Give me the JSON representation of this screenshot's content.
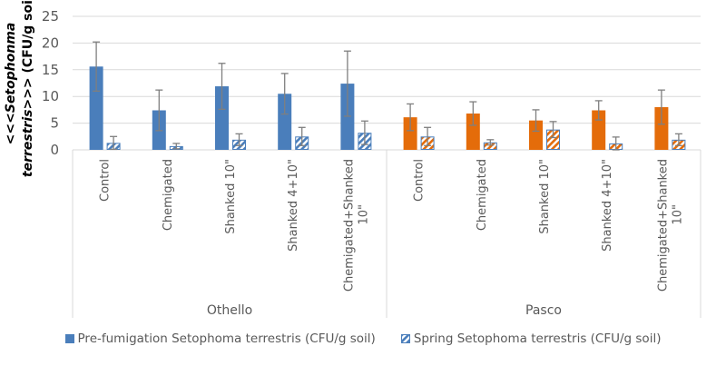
{
  "chart_data": {
    "type": "bar",
    "title": "",
    "ylabel_parts": [
      "<<<",
      "Setophonma terrestris",
      ">>> (CFU/g soil)"
    ],
    "ylabel": "<<<Setophonma terrestris>>> (CFU/g soil)",
    "xlabel": "",
    "ylim": [
      0,
      25
    ],
    "yticks": [
      0,
      5,
      10,
      15,
      20,
      25
    ],
    "grid": true,
    "legend_position": "bottom",
    "groups": [
      {
        "name": "Othello",
        "categories": [
          "Control",
          "Chemigated",
          "Shanked 10\"",
          "Shanked 4+10\"",
          "Chemigated+Shanked 10\""
        ]
      },
      {
        "name": "Pasco",
        "categories": [
          "Control",
          "Chemigated",
          "Shanked 10\"",
          "Shanked 4+10\"",
          "Chemigated+Shanked 10\""
        ]
      }
    ],
    "categories": [
      "Control",
      "Chemigated",
      "Shanked 10\"",
      "Shanked 4+10\"",
      "Chemigated+Shanked 10\"",
      "Control",
      "Chemigated",
      "Shanked 10\"",
      "Shanked 4+10\"",
      "Chemigated+Shanked 10\""
    ],
    "series": [
      {
        "name": "Pre-fumigation Setophoma terrestris (CFU/g soil)",
        "pattern": "solid",
        "values": [
          15.6,
          7.4,
          11.9,
          10.5,
          12.4,
          6.1,
          6.8,
          5.5,
          7.4,
          8.0
        ],
        "error": [
          4.6,
          3.8,
          4.3,
          3.8,
          6.1,
          2.5,
          2.2,
          2.0,
          1.8,
          3.2
        ]
      },
      {
        "name": "Spring Setophoma terrestris (CFU/g soil)",
        "pattern": "hatched",
        "values": [
          1.3,
          0.7,
          1.9,
          2.5,
          3.2,
          2.5,
          1.4,
          3.8,
          1.2,
          1.9
        ],
        "error": [
          1.2,
          0.5,
          1.1,
          1.7,
          2.2,
          1.7,
          0.5,
          1.5,
          1.2,
          1.1
        ]
      }
    ],
    "group_colors": {
      "Othello": "#4a7ebb",
      "Pasco": "#e46c0a"
    },
    "hatch_border_color": "#4a7ebb",
    "error_bar_color": "#7f7f7f",
    "gridline_color": "#d9d9d9",
    "axis_color": "#d9d9d9"
  },
  "legend": [
    {
      "label": "Pre-fumigation Setophoma terrestris (CFU/g soil)",
      "icon": "solid-square"
    },
    {
      "label": "Spring Setophoma terrestris (CFU/g soil)",
      "icon": "hatched-square"
    }
  ]
}
